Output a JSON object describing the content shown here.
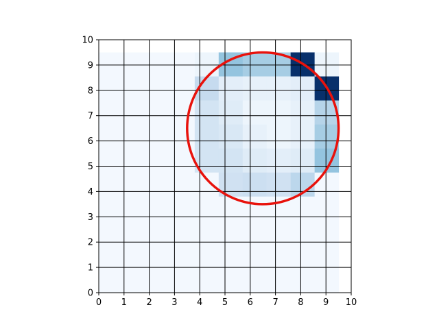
{
  "chart_data": {
    "type": "heatmap",
    "title": "",
    "xlabel": "",
    "ylabel": "",
    "xlim": [
      0,
      10
    ],
    "ylim": [
      0,
      10
    ],
    "xticks": [
      "0",
      "1",
      "2",
      "3",
      "4",
      "5",
      "6",
      "7",
      "8",
      "9",
      "10"
    ],
    "yticks": [
      "0",
      "1",
      "2",
      "3",
      "4",
      "5",
      "6",
      "7",
      "8",
      "9",
      "10"
    ],
    "grid": true,
    "colormap": "Blues",
    "value_range": [
      0,
      1
    ],
    "cells_extent": {
      "x": [
        0,
        9.5
      ],
      "y": [
        0,
        9.5
      ]
    },
    "rows_from_top": [
      [
        0.02,
        0.02,
        0.02,
        0.02,
        0.05,
        0.4,
        0.35,
        0.35,
        1.0,
        0.05
      ],
      [
        0.02,
        0.02,
        0.02,
        0.02,
        0.25,
        0.1,
        0.08,
        0.08,
        0.1,
        1.0
      ],
      [
        0.02,
        0.02,
        0.02,
        0.02,
        0.18,
        0.12,
        0.05,
        0.05,
        0.08,
        0.3
      ],
      [
        0.02,
        0.02,
        0.02,
        0.02,
        0.18,
        0.15,
        0.08,
        0.05,
        0.08,
        0.35
      ],
      [
        0.02,
        0.02,
        0.02,
        0.02,
        0.18,
        0.18,
        0.12,
        0.1,
        0.12,
        0.4
      ],
      [
        0.02,
        0.02,
        0.02,
        0.02,
        0.02,
        0.2,
        0.22,
        0.2,
        0.28,
        0.02
      ],
      [
        0.02,
        0.02,
        0.02,
        0.02,
        0.02,
        0.02,
        0.02,
        0.02,
        0.02,
        0.02
      ],
      [
        0.02,
        0.02,
        0.02,
        0.02,
        0.02,
        0.02,
        0.02,
        0.02,
        0.02,
        0.02
      ],
      [
        0.02,
        0.02,
        0.02,
        0.02,
        0.02,
        0.02,
        0.02,
        0.02,
        0.02,
        0.02
      ],
      [
        0.02,
        0.02,
        0.02,
        0.02,
        0.02,
        0.02,
        0.02,
        0.02,
        0.02,
        0.02
      ]
    ],
    "annotations": [
      {
        "type": "circle",
        "center": [
          6.5,
          6.5
        ],
        "radius": 3,
        "color": "#e8120c"
      }
    ]
  }
}
